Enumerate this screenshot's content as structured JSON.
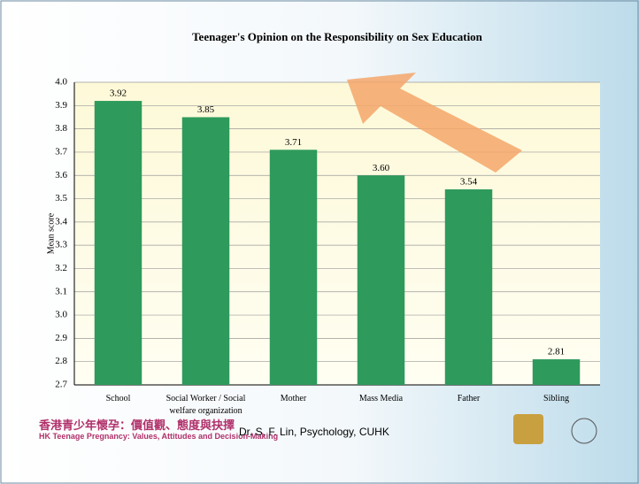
{
  "chart_data": {
    "type": "bar",
    "title": "Teenager's Opinion on the Responsibility on Sex Education",
    "y_label": "Mean score",
    "categories": [
      "School",
      "Social Worker / Social welfare organization",
      "Mother",
      "Mass Media",
      "Father",
      "Sibling"
    ],
    "values": [
      3.92,
      3.85,
      3.71,
      3.6,
      3.54,
      2.81
    ],
    "value_labels": [
      "3.92",
      "3.85",
      "3.71",
      "3.60",
      "3.54",
      "2.81"
    ],
    "color": "#2e9a5c",
    "ylim": [
      2.7,
      4.0
    ],
    "yticks": [
      2.7,
      2.8,
      2.9,
      {
        "value": 3,
        "label": "3.0"
      },
      3.1,
      3.2,
      3.3,
      3.4,
      3.5,
      3.6,
      3.7,
      3.8,
      3.9,
      {
        "value": 4,
        "label": "4.0"
      }
    ],
    "grid": true
  },
  "footer": {
    "chinese_title": "香港青少年懷孕：價值觀、態度與抉擇",
    "english_title": "HK Teenage Pregnancy: Values, Attitudes and Decision-Making",
    "credit": "Dr. S. F. Lin, Psychology, CUHK"
  }
}
